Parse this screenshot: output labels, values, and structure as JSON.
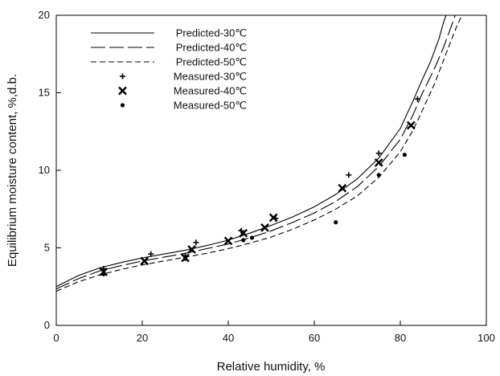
{
  "chart_data": {
    "type": "scatter",
    "xlabel": "Relative humidity, %",
    "ylabel": "Equilibrium moisture content, %,d.b.",
    "xlim": [
      0,
      100
    ],
    "ylim": [
      0,
      20
    ],
    "xticks": [
      0,
      20,
      40,
      60,
      80,
      100
    ],
    "yticks": [
      0,
      5,
      10,
      15,
      20
    ],
    "grid": false,
    "legend_position": "top-left",
    "series": [
      {
        "name": "Predicted-30℃",
        "kind": "line",
        "line_style": "solid",
        "x": [
          0,
          5,
          10,
          15,
          20,
          25,
          30,
          35,
          40,
          45,
          50,
          55,
          60,
          65,
          70,
          75,
          80,
          83,
          85,
          87,
          89,
          90,
          91
        ],
        "y": [
          2.5,
          3.2,
          3.7,
          4.05,
          4.35,
          4.6,
          4.85,
          5.15,
          5.5,
          5.95,
          6.45,
          7.0,
          7.65,
          8.45,
          9.45,
          10.8,
          12.7,
          14.5,
          15.8,
          17.0,
          18.5,
          19.5,
          20.3
        ]
      },
      {
        "name": "Predicted-40℃",
        "kind": "line",
        "line_style": "longdash",
        "x": [
          0,
          5,
          10,
          15,
          20,
          25,
          30,
          35,
          40,
          45,
          50,
          55,
          60,
          65,
          70,
          75,
          80,
          83,
          85,
          88,
          90,
          92,
          93
        ],
        "y": [
          2.35,
          3.0,
          3.5,
          3.85,
          4.15,
          4.4,
          4.65,
          4.95,
          5.25,
          5.65,
          6.1,
          6.65,
          7.25,
          8.0,
          8.95,
          10.25,
          12.0,
          13.6,
          14.9,
          16.6,
          17.9,
          19.4,
          20.2
        ]
      },
      {
        "name": "Predicted-50℃",
        "kind": "line",
        "line_style": "shortdash",
        "x": [
          0,
          5,
          10,
          15,
          20,
          25,
          30,
          35,
          40,
          45,
          50,
          55,
          60,
          65,
          70,
          75,
          80,
          83,
          85,
          88,
          91,
          93,
          95
        ],
        "y": [
          2.2,
          2.8,
          3.25,
          3.6,
          3.9,
          4.15,
          4.4,
          4.65,
          4.95,
          5.3,
          5.7,
          6.2,
          6.8,
          7.5,
          8.35,
          9.55,
          11.2,
          12.6,
          13.8,
          15.6,
          17.8,
          19.2,
          20.4
        ]
      },
      {
        "name": "Measured-30℃",
        "kind": "points",
        "marker": "plus",
        "x": [
          11,
          22,
          30,
          32.5,
          43,
          51,
          68,
          75,
          84
        ],
        "y": [
          3.65,
          4.6,
          4.5,
          5.35,
          6.1,
          6.9,
          9.7,
          11.1,
          14.6
        ]
      },
      {
        "name": "Measured-40℃",
        "kind": "points",
        "marker": "x",
        "x": [
          11,
          20.5,
          30,
          31.5,
          40,
          43.5,
          48.5,
          50.5,
          66.5,
          75,
          82.5
        ],
        "y": [
          3.45,
          4.15,
          4.35,
          4.9,
          5.45,
          5.95,
          6.3,
          6.95,
          8.85,
          10.5,
          12.9
        ]
      },
      {
        "name": "Measured-50℃",
        "kind": "points",
        "marker": "dot",
        "x": [
          11,
          30,
          43.5,
          45.5,
          65,
          75,
          81
        ],
        "y": [
          3.3,
          4.3,
          5.5,
          5.65,
          6.65,
          9.7,
          11.0
        ]
      }
    ]
  }
}
